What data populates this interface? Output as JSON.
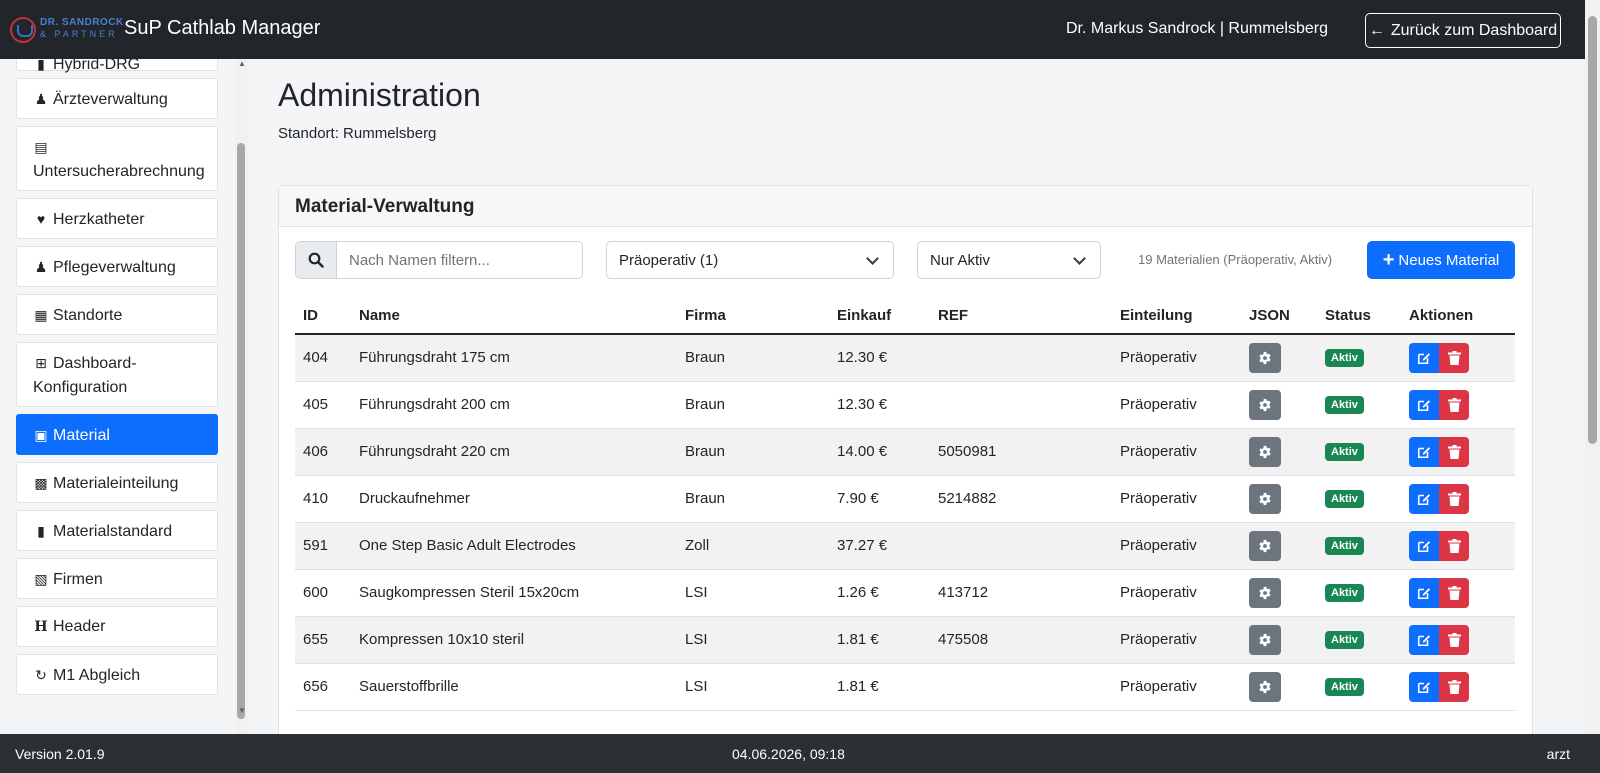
{
  "header": {
    "logo_line1": "DR. SANDROCK",
    "logo_line2": "& PARTNER",
    "app_title": "SuP Cathlab Manager",
    "user": "Dr. Markus Sandrock | Rummelsberg",
    "back_button": "Zurück zum Dashboard"
  },
  "sidebar": {
    "items": [
      {
        "label": "Hybrid-DRG",
        "icon": "file-icon"
      },
      {
        "label": "Ärzteverwaltung",
        "icon": "doctor-icon"
      },
      {
        "label": "Untersucherabrechnung",
        "icon": "invoice-icon"
      },
      {
        "label": "Herzkatheter",
        "icon": "heartbeat-icon"
      },
      {
        "label": "Pflegeverwaltung",
        "icon": "nurse-icon"
      },
      {
        "label": "Standorte",
        "icon": "buildings-icon"
      },
      {
        "label": "Dashboard-Konfiguration",
        "icon": "table-icon"
      },
      {
        "label": "Material",
        "icon": "boxes-icon",
        "active": true
      },
      {
        "label": "Materialeinteilung",
        "icon": "boxes-stacked-icon"
      },
      {
        "label": "Materialstandard",
        "icon": "clipboard-icon"
      },
      {
        "label": "Firmen",
        "icon": "building-icon"
      },
      {
        "label": "Header",
        "icon": "heading-icon"
      },
      {
        "label": "M1 Abgleich",
        "icon": "sync-icon"
      }
    ]
  },
  "main": {
    "title": "Administration",
    "subtitle": "Standort: Rummelsberg",
    "card_title": "Material-Verwaltung",
    "search_placeholder": "Nach Namen filtern...",
    "category_filter": "Präoperativ (1)",
    "status_filter": "Nur Aktiv",
    "count_text": "19 Materialien (Präoperativ, Aktiv)",
    "new_button": "Neues Material",
    "table": {
      "headers": [
        "ID",
        "Name",
        "Firma",
        "Einkauf",
        "REF",
        "Einteilung",
        "JSON",
        "Status",
        "Aktionen"
      ],
      "rows": [
        {
          "id": "404",
          "name": "Führungsdraht 175 cm",
          "firma": "Braun",
          "einkauf": "12.30 €",
          "ref": "",
          "einteilung": "Präoperativ",
          "status": "Aktiv"
        },
        {
          "id": "405",
          "name": "Führungsdraht 200 cm",
          "firma": "Braun",
          "einkauf": "12.30 €",
          "ref": "",
          "einteilung": "Präoperativ",
          "status": "Aktiv"
        },
        {
          "id": "406",
          "name": "Führungsdraht 220 cm",
          "firma": "Braun",
          "einkauf": "14.00 €",
          "ref": "5050981",
          "einteilung": "Präoperativ",
          "status": "Aktiv"
        },
        {
          "id": "410",
          "name": "Druckaufnehmer",
          "firma": "Braun",
          "einkauf": "7.90 €",
          "ref": "5214882",
          "einteilung": "Präoperativ",
          "status": "Aktiv"
        },
        {
          "id": "591",
          "name": "One Step Basic Adult Electrodes",
          "firma": "Zoll",
          "einkauf": "37.27 €",
          "ref": "",
          "einteilung": "Präoperativ",
          "status": "Aktiv"
        },
        {
          "id": "600",
          "name": "Saugkompressen Steril 15x20cm",
          "firma": "LSI",
          "einkauf": "1.26 €",
          "ref": "413712",
          "einteilung": "Präoperativ",
          "status": "Aktiv"
        },
        {
          "id": "655",
          "name": "Kompressen 10x10 steril",
          "firma": "LSI",
          "einkauf": "1.81 €",
          "ref": "475508",
          "einteilung": "Präoperativ",
          "status": "Aktiv"
        },
        {
          "id": "656",
          "name": "Sauerstoffbrille",
          "firma": "LSI",
          "einkauf": "1.81 €",
          "ref": "",
          "einteilung": "Präoperativ",
          "status": "Aktiv"
        }
      ]
    }
  },
  "footer": {
    "version": "Version 2.01.9",
    "datetime": "04.06.2026, 09:18",
    "role": "arzt"
  },
  "colors": {
    "navbar": "#22262b",
    "primary": "#0d6efd",
    "danger": "#dc3545",
    "success": "#198754",
    "secondary": "#6c757d",
    "footer": "#2b3035"
  }
}
